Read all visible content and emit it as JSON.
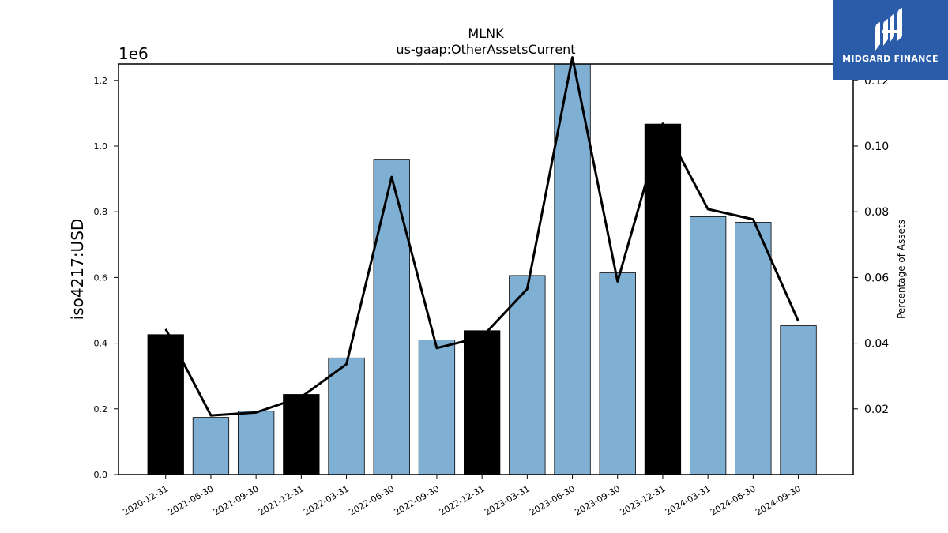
{
  "chart_data": {
    "type": "bar",
    "title": "MLNK",
    "subtitle": "us-gaap:OtherAssetsCurrent",
    "ylabel": "iso4217:USD",
    "y2label": "Percentage of Assets",
    "offset_label": "1e6",
    "categories": [
      "2020-12-31",
      "2021-06-30",
      "2021-09-30",
      "2021-12-31",
      "2022-03-31",
      "2022-06-30",
      "2022-09-30",
      "2022-12-31",
      "2023-03-31",
      "2023-06-30",
      "2023-09-30",
      "2023-12-31",
      "2024-03-31",
      "2024-06-30",
      "2024-09-30"
    ],
    "series": [
      {
        "type": "bar",
        "values": [
          426000,
          174000,
          193000,
          244000,
          355000,
          960000,
          410000,
          438000,
          606000,
          1250000,
          614000,
          1067000,
          785000,
          768000,
          453000
        ],
        "colors": [
          "#000000",
          "#7fafd3",
          "#7fafd3",
          "#000000",
          "#7fafd3",
          "#7fafd3",
          "#7fafd3",
          "#000000",
          "#7fafd3",
          "#7fafd3",
          "#7fafd3",
          "#000000",
          "#7fafd3",
          "#7fafd3",
          "#7fafd3"
        ]
      },
      {
        "type": "line",
        "axis": "right",
        "color": "#000000",
        "values": [
          0.0443,
          0.018,
          0.0189,
          0.0236,
          0.0336,
          0.0906,
          0.0385,
          0.0419,
          0.0565,
          0.127,
          0.0588,
          0.1068,
          0.0808,
          0.0777,
          0.0467
        ]
      }
    ],
    "ylim": [
      0,
      1250000
    ],
    "y2lim": [
      0,
      0.125
    ],
    "yticks": [
      {
        "value": 0,
        "label": "0.0"
      },
      {
        "value": 200000,
        "label": "0.2"
      },
      {
        "value": 400000,
        "label": "0.4"
      },
      {
        "value": 600000,
        "label": "0.6"
      },
      {
        "value": 800000,
        "label": "0.8"
      },
      {
        "value": 1000000,
        "label": "1.0"
      },
      {
        "value": 1200000,
        "label": "1.2"
      }
    ],
    "y2ticks": [
      {
        "value": 0.02,
        "label": "0.02"
      },
      {
        "value": 0.04,
        "label": "0.04"
      },
      {
        "value": 0.06,
        "label": "0.06"
      },
      {
        "value": 0.08,
        "label": "0.08"
      },
      {
        "value": 0.1,
        "label": "0.10"
      },
      {
        "value": 0.12,
        "label": "0.12"
      }
    ],
    "grid": false,
    "legend": "none"
  },
  "logo": {
    "text": "MIDGARD FINANCE",
    "background": "#2a5caa",
    "icon": "midgard-logo-icon"
  }
}
